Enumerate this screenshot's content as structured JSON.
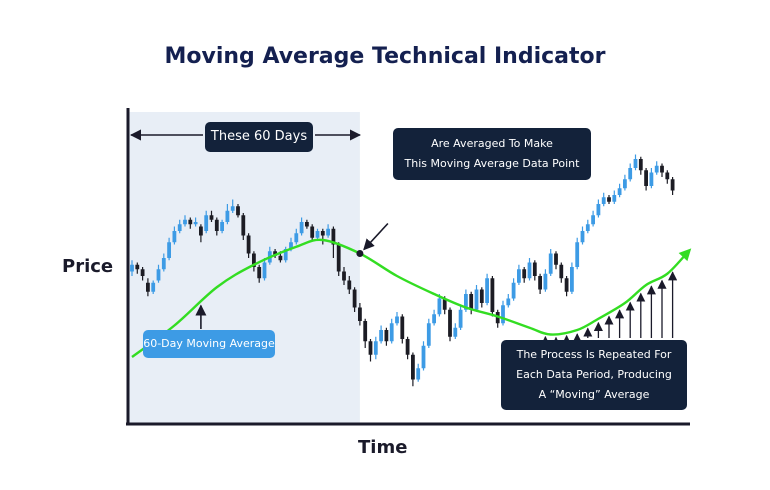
{
  "chart_data": {
    "type": "candlestick",
    "title": "Moving Average Technical Indicator",
    "xlabel": "Time",
    "ylabel": "Price",
    "colors": {
      "up": "#3d9be5",
      "down": "#1c1c24",
      "moving_average": "#33dd22",
      "window_shade": "#e8eef6",
      "axis": "#1a1a2a",
      "label_bg": "#13223a"
    },
    "candles": [
      {
        "o": 54,
        "c": 57,
        "h": 59,
        "l": 52
      },
      {
        "o": 57,
        "c": 55,
        "h": 58,
        "l": 53
      },
      {
        "o": 55,
        "c": 52,
        "h": 56,
        "l": 50
      },
      {
        "o": 49,
        "c": 45,
        "h": 51,
        "l": 43
      },
      {
        "o": 45,
        "c": 49,
        "h": 50,
        "l": 44
      },
      {
        "o": 50,
        "c": 55,
        "h": 57,
        "l": 49
      },
      {
        "o": 55,
        "c": 60,
        "h": 62,
        "l": 54
      },
      {
        "o": 60,
        "c": 67,
        "h": 69,
        "l": 59
      },
      {
        "o": 67,
        "c": 72,
        "h": 74,
        "l": 66
      },
      {
        "o": 72,
        "c": 75,
        "h": 77,
        "l": 71
      },
      {
        "o": 75,
        "c": 77,
        "h": 79,
        "l": 74
      },
      {
        "o": 77,
        "c": 75,
        "h": 78,
        "l": 73
      },
      {
        "o": 75,
        "c": 76,
        "h": 78,
        "l": 74
      },
      {
        "o": 74,
        "c": 70,
        "h": 75,
        "l": 67
      },
      {
        "o": 72,
        "c": 79,
        "h": 81,
        "l": 71
      },
      {
        "o": 79,
        "c": 77,
        "h": 81,
        "l": 76
      },
      {
        "o": 77,
        "c": 72,
        "h": 78,
        "l": 70
      },
      {
        "o": 72,
        "c": 76,
        "h": 77,
        "l": 71
      },
      {
        "o": 76,
        "c": 81,
        "h": 84,
        "l": 75
      },
      {
        "o": 81,
        "c": 83,
        "h": 86,
        "l": 80
      },
      {
        "o": 83,
        "c": 79,
        "h": 84,
        "l": 78
      },
      {
        "o": 79,
        "c": 70,
        "h": 80,
        "l": 68
      },
      {
        "o": 70,
        "c": 62,
        "h": 71,
        "l": 60
      },
      {
        "o": 62,
        "c": 56,
        "h": 63,
        "l": 54
      },
      {
        "o": 56,
        "c": 51,
        "h": 57,
        "l": 49
      },
      {
        "o": 51,
        "c": 58,
        "h": 60,
        "l": 50
      },
      {
        "o": 58,
        "c": 63,
        "h": 65,
        "l": 57
      },
      {
        "o": 63,
        "c": 61,
        "h": 64,
        "l": 60
      },
      {
        "o": 61,
        "c": 59,
        "h": 63,
        "l": 58
      },
      {
        "o": 59,
        "c": 64,
        "h": 65,
        "l": 58
      },
      {
        "o": 64,
        "c": 67,
        "h": 69,
        "l": 63
      },
      {
        "o": 67,
        "c": 71,
        "h": 73,
        "l": 66
      },
      {
        "o": 71,
        "c": 76,
        "h": 78,
        "l": 70
      },
      {
        "o": 76,
        "c": 74,
        "h": 77,
        "l": 73
      },
      {
        "o": 74,
        "c": 69,
        "h": 75,
        "l": 68
      },
      {
        "o": 69,
        "c": 72,
        "h": 73,
        "l": 68
      },
      {
        "o": 72,
        "c": 70,
        "h": 73,
        "l": 66
      },
      {
        "o": 70,
        "c": 73,
        "h": 75,
        "l": 69
      },
      {
        "o": 73,
        "c": 66,
        "h": 74,
        "l": 60
      },
      {
        "o": 66,
        "c": 54,
        "h": 67,
        "l": 52
      },
      {
        "o": 54,
        "c": 50,
        "h": 56,
        "l": 48
      },
      {
        "o": 50,
        "c": 46,
        "h": 52,
        "l": 44
      },
      {
        "o": 46,
        "c": 38,
        "h": 47,
        "l": 36
      },
      {
        "o": 38,
        "c": 32,
        "h": 40,
        "l": 30
      },
      {
        "o": 32,
        "c": 23,
        "h": 33,
        "l": 20
      },
      {
        "o": 23,
        "c": 17,
        "h": 24,
        "l": 14
      },
      {
        "o": 17,
        "c": 23,
        "h": 25,
        "l": 15
      },
      {
        "o": 23,
        "c": 28,
        "h": 30,
        "l": 22
      },
      {
        "o": 28,
        "c": 23,
        "h": 29,
        "l": 21
      },
      {
        "o": 23,
        "c": 31,
        "h": 33,
        "l": 22
      },
      {
        "o": 31,
        "c": 34,
        "h": 36,
        "l": 30
      },
      {
        "o": 34,
        "c": 24,
        "h": 35,
        "l": 22
      },
      {
        "o": 24,
        "c": 17,
        "h": 25,
        "l": 15
      },
      {
        "o": 17,
        "c": 6,
        "h": 18,
        "l": 3
      },
      {
        "o": 6,
        "c": 11,
        "h": 13,
        "l": 5
      },
      {
        "o": 11,
        "c": 21,
        "h": 23,
        "l": 10
      },
      {
        "o": 21,
        "c": 31,
        "h": 33,
        "l": 20
      },
      {
        "o": 31,
        "c": 35,
        "h": 37,
        "l": 30
      },
      {
        "o": 35,
        "c": 42,
        "h": 44,
        "l": 34
      },
      {
        "o": 42,
        "c": 37,
        "h": 43,
        "l": 35
      },
      {
        "o": 37,
        "c": 25,
        "h": 38,
        "l": 23
      },
      {
        "o": 25,
        "c": 29,
        "h": 31,
        "l": 24
      },
      {
        "o": 29,
        "c": 37,
        "h": 39,
        "l": 28
      },
      {
        "o": 37,
        "c": 44,
        "h": 46,
        "l": 36
      },
      {
        "o": 44,
        "c": 37,
        "h": 45,
        "l": 35
      },
      {
        "o": 37,
        "c": 46,
        "h": 48,
        "l": 36
      },
      {
        "o": 46,
        "c": 40,
        "h": 47,
        "l": 38
      },
      {
        "o": 40,
        "c": 51,
        "h": 53,
        "l": 39
      },
      {
        "o": 51,
        "c": 36,
        "h": 52,
        "l": 34
      },
      {
        "o": 36,
        "c": 31,
        "h": 37,
        "l": 29
      },
      {
        "o": 31,
        "c": 39,
        "h": 41,
        "l": 30
      },
      {
        "o": 39,
        "c": 42,
        "h": 44,
        "l": 38
      },
      {
        "o": 42,
        "c": 49,
        "h": 51,
        "l": 41
      },
      {
        "o": 49,
        "c": 55,
        "h": 57,
        "l": 48
      },
      {
        "o": 55,
        "c": 51,
        "h": 56,
        "l": 49
      },
      {
        "o": 51,
        "c": 58,
        "h": 60,
        "l": 50
      },
      {
        "o": 58,
        "c": 52,
        "h": 59,
        "l": 50
      },
      {
        "o": 52,
        "c": 46,
        "h": 53,
        "l": 44
      },
      {
        "o": 46,
        "c": 53,
        "h": 55,
        "l": 45
      },
      {
        "o": 53,
        "c": 62,
        "h": 64,
        "l": 52
      },
      {
        "o": 62,
        "c": 57,
        "h": 63,
        "l": 55
      },
      {
        "o": 57,
        "c": 51,
        "h": 58,
        "l": 49
      },
      {
        "o": 51,
        "c": 45,
        "h": 52,
        "l": 43
      },
      {
        "o": 45,
        "c": 56,
        "h": 58,
        "l": 44
      },
      {
        "o": 56,
        "c": 67,
        "h": 69,
        "l": 55
      },
      {
        "o": 67,
        "c": 72,
        "h": 74,
        "l": 66
      },
      {
        "o": 72,
        "c": 75,
        "h": 77,
        "l": 71
      },
      {
        "o": 75,
        "c": 79,
        "h": 81,
        "l": 74
      },
      {
        "o": 79,
        "c": 84,
        "h": 86,
        "l": 78
      },
      {
        "o": 84,
        "c": 87,
        "h": 89,
        "l": 83
      },
      {
        "o": 87,
        "c": 85,
        "h": 88,
        "l": 84
      },
      {
        "o": 85,
        "c": 88,
        "h": 90,
        "l": 84
      },
      {
        "o": 88,
        "c": 91,
        "h": 93,
        "l": 87
      },
      {
        "o": 91,
        "c": 95,
        "h": 97,
        "l": 90
      },
      {
        "o": 95,
        "c": 100,
        "h": 102,
        "l": 94
      },
      {
        "o": 100,
        "c": 104,
        "h": 106,
        "l": 99
      },
      {
        "o": 104,
        "c": 99,
        "h": 105,
        "l": 97
      },
      {
        "o": 99,
        "c": 92,
        "h": 100,
        "l": 90
      },
      {
        "o": 92,
        "c": 98,
        "h": 100,
        "l": 91
      },
      {
        "o": 98,
        "c": 101,
        "h": 103,
        "l": 97
      },
      {
        "o": 101,
        "c": 98,
        "h": 102,
        "l": 96
      },
      {
        "o": 98,
        "c": 95,
        "h": 99,
        "l": 93
      },
      {
        "o": 95,
        "c": 90,
        "h": 96,
        "l": 88
      }
    ],
    "moving_average": [
      {
        "i": 0,
        "v": 16
      },
      {
        "i": 8,
        "v": 30
      },
      {
        "i": 16,
        "v": 47
      },
      {
        "i": 23,
        "v": 57
      },
      {
        "i": 31,
        "v": 65
      },
      {
        "i": 36,
        "v": 68
      },
      {
        "i": 43,
        "v": 62
      },
      {
        "i": 50,
        "v": 52
      },
      {
        "i": 57,
        "v": 44
      },
      {
        "i": 63,
        "v": 38
      },
      {
        "i": 69,
        "v": 34
      },
      {
        "i": 75,
        "v": 29
      },
      {
        "i": 79,
        "v": 26
      },
      {
        "i": 84,
        "v": 28
      },
      {
        "i": 88,
        "v": 33
      },
      {
        "i": 93,
        "v": 40
      },
      {
        "i": 97,
        "v": 48
      },
      {
        "i": 101,
        "v": 53
      },
      {
        "i": 105,
        "v": 63
      }
    ],
    "window_end_index": 43,
    "highlight_point_index": 43,
    "repeat_arrow_indices": [
      78,
      80,
      82,
      84,
      86,
      88,
      90,
      92,
      94,
      96,
      98,
      100,
      102
    ],
    "ma_arrow_index": 13
  },
  "annotations": {
    "window_label": "These 60 Days",
    "averaged_label_line1": "Are Averaged To Make",
    "averaged_label_line2": "This Moving Average Data Point",
    "ma_label": "60-Day Moving Average",
    "repeat_label_line1": "The Process Is Repeated For",
    "repeat_label_line2": "Each Data Period, Producing",
    "repeat_label_line3": "A “Moving” Average"
  }
}
